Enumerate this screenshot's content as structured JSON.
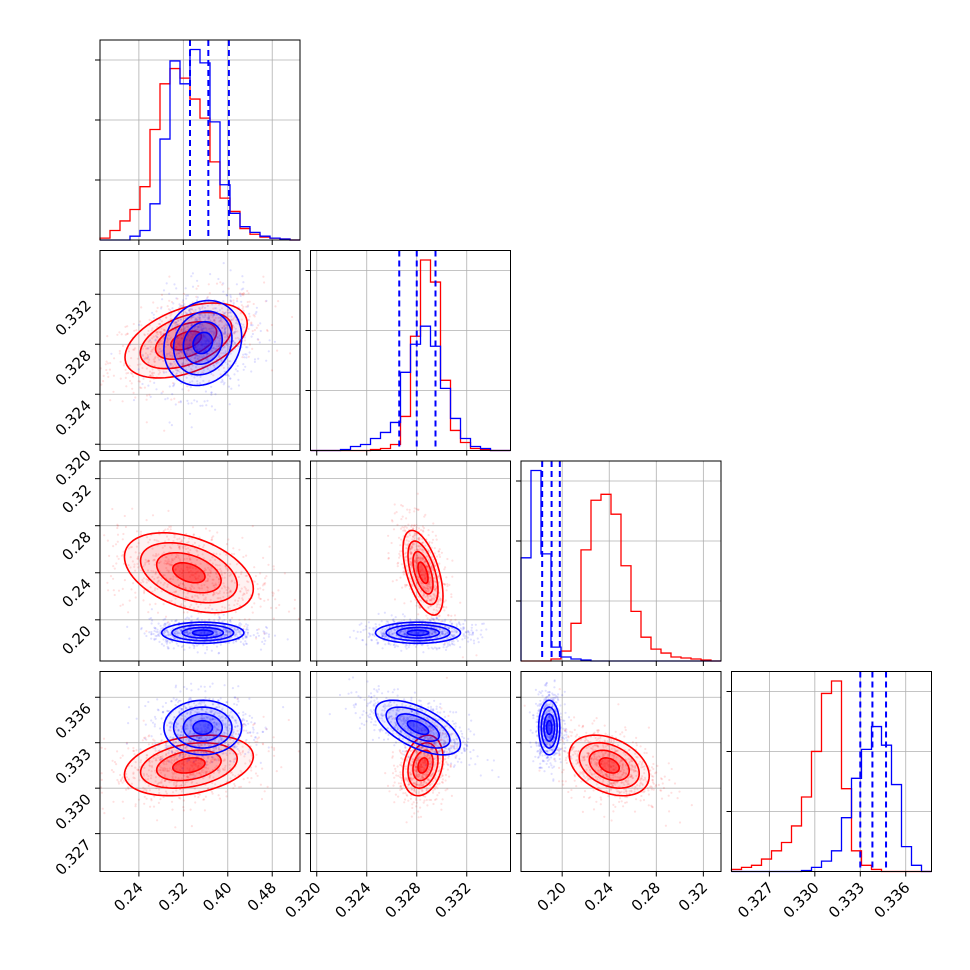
{
  "colors": {
    "red": "#ff0000",
    "blue": "#0000ff",
    "grid": "#b0b0b0"
  },
  "chart_data": {
    "type": "corner",
    "grid": true,
    "series": [
      {
        "color": "red"
      },
      {
        "color": "blue"
      }
    ],
    "parameters": [
      {
        "range": [
          0.17,
          0.53
        ],
        "ticks": [
          0.24,
          0.32,
          0.4,
          0.48
        ],
        "tick_labels": [
          "0.24",
          "0.32",
          "0.40",
          "0.48"
        ]
      },
      {
        "range": [
          0.3195,
          0.3355
        ],
        "ticks": [
          0.32,
          0.324,
          0.328,
          0.332
        ],
        "tick_labels": [
          "0.320",
          "0.324",
          "0.328",
          "0.332"
        ]
      },
      {
        "range": [
          0.165,
          0.335
        ],
        "ticks": [
          0.2,
          0.24,
          0.28,
          0.32
        ],
        "tick_labels": [
          "0.20",
          "0.24",
          "0.28",
          "0.32"
        ]
      },
      {
        "range": [
          0.3245,
          0.3377
        ],
        "ticks": [
          0.327,
          0.33,
          0.333,
          0.336
        ],
        "tick_labels": [
          "0.327",
          "0.330",
          "0.333",
          "0.336"
        ]
      }
    ],
    "histograms": [
      {
        "bin_edges": [
          0.17,
          0.188,
          0.206,
          0.224,
          0.242,
          0.26,
          0.278,
          0.296,
          0.314,
          0.332,
          0.35,
          0.368,
          0.386,
          0.404,
          0.422,
          0.44,
          0.458,
          0.476,
          0.494,
          0.512,
          0.53
        ],
        "red": [
          0.01,
          0.05,
          0.1,
          0.16,
          0.28,
          0.58,
          0.82,
          0.9,
          0.85,
          0.74,
          0.64,
          0.41,
          0.22,
          0.15,
          0.06,
          0.03,
          0.015,
          0.01,
          0.005,
          0
        ],
        "blue": [
          0,
          0,
          0,
          0.02,
          0.05,
          0.19,
          0.53,
          0.94,
          0.82,
          1.0,
          0.93,
          0.62,
          0.29,
          0.14,
          0.07,
          0.04,
          0.02,
          0.01,
          0.005,
          0
        ],
        "quantiles_blue": [
          0.332,
          0.365,
          0.402
        ]
      },
      {
        "bin_edges": [
          0.3195,
          0.3203,
          0.3211,
          0.3219,
          0.3227,
          0.3235,
          0.3243,
          0.3251,
          0.3259,
          0.3267,
          0.3275,
          0.3283,
          0.3291,
          0.3299,
          0.3307,
          0.3315,
          0.3323,
          0.3331,
          0.3339,
          0.3347,
          0.3355
        ],
        "red": [
          0,
          0,
          0,
          0,
          0,
          0,
          0.005,
          0.01,
          0.03,
          0.17,
          0.57,
          0.95,
          0.84,
          0.35,
          0.1,
          0.04,
          0.01,
          0.005,
          0,
          0
        ],
        "blue": [
          0,
          0,
          0,
          0.005,
          0.02,
          0.03,
          0.06,
          0.09,
          0.14,
          0.39,
          0.53,
          0.62,
          0.52,
          0.31,
          0.16,
          0.06,
          0.02,
          0.01,
          0,
          0
        ],
        "quantiles_blue": [
          0.3266,
          0.328,
          0.3295
        ]
      },
      {
        "bin_edges": [
          0.165,
          0.1735,
          0.182,
          0.1905,
          0.199,
          0.2075,
          0.216,
          0.2245,
          0.233,
          0.2415,
          0.25,
          0.2585,
          0.267,
          0.2755,
          0.284,
          0.2925,
          0.301,
          0.3095,
          0.318,
          0.3265,
          0.335
        ],
        "red": [
          0,
          0,
          0,
          0.01,
          0.05,
          0.19,
          0.56,
          0.81,
          0.84,
          0.74,
          0.48,
          0.25,
          0.12,
          0.06,
          0.04,
          0.02,
          0.015,
          0.01,
          0.005,
          0
        ],
        "blue": [
          0.52,
          0.96,
          0.54,
          0.07,
          0.02,
          0.01,
          0.005,
          0,
          0,
          0,
          0,
          0,
          0,
          0,
          0,
          0,
          0,
          0,
          0,
          0
        ],
        "quantiles_blue": [
          0.183,
          0.191,
          0.198
        ]
      },
      {
        "bin_edges": [
          0.3245,
          0.32516,
          0.32582,
          0.32648,
          0.32714,
          0.3278,
          0.32846,
          0.32912,
          0.32978,
          0.33044,
          0.3311,
          0.33176,
          0.33242,
          0.33308,
          0.33374,
          0.3344,
          0.33506,
          0.33572,
          0.33638,
          0.33704,
          0.3377
        ],
        "red": [
          0.01,
          0.02,
          0.03,
          0.06,
          0.1,
          0.14,
          0.22,
          0.36,
          0.58,
          0.86,
          0.92,
          0.4,
          0.1,
          0.03,
          0.01,
          0,
          0,
          0,
          0,
          0
        ],
        "blue": [
          0,
          0,
          0,
          0,
          0,
          0,
          0,
          0.005,
          0.02,
          0.05,
          0.1,
          0.26,
          0.45,
          0.59,
          0.7,
          0.61,
          0.42,
          0.12,
          0.03,
          0
        ],
        "quantiles_blue": [
          0.333,
          0.3338,
          0.3347
        ]
      }
    ],
    "pairs": [
      {
        "x": 0,
        "y": 1,
        "red": {
          "mean": [
            0.325,
            0.3283
          ],
          "sd": [
            0.055,
            0.0015
          ],
          "rho": 0.45
        },
        "blue": {
          "mean": [
            0.355,
            0.3281
          ],
          "sd": [
            0.035,
            0.0017
          ],
          "rho": 0.15
        }
      },
      {
        "x": 0,
        "y": 2,
        "red": {
          "mean": [
            0.33,
            0.24
          ],
          "sd": [
            0.058,
            0.017
          ],
          "rho": -0.4
        },
        "blue": {
          "mean": [
            0.355,
            0.189
          ],
          "sd": [
            0.037,
            0.0045
          ],
          "rho": 0.0
        }
      },
      {
        "x": 1,
        "y": 2,
        "red": {
          "mean": [
            0.3285,
            0.24
          ],
          "sd": [
            0.0008,
            0.018
          ],
          "rho": -0.55
        },
        "blue": {
          "mean": [
            0.3281,
            0.189
          ],
          "sd": [
            0.0017,
            0.0045
          ],
          "rho": 0.0
        }
      },
      {
        "x": 0,
        "y": 3,
        "red": {
          "mean": [
            0.33,
            0.3315
          ],
          "sd": [
            0.058,
            0.001
          ],
          "rho": 0.3
        },
        "blue": {
          "mean": [
            0.355,
            0.334
          ],
          "sd": [
            0.035,
            0.0009
          ],
          "rho": 0.0
        }
      },
      {
        "x": 1,
        "y": 3,
        "red": {
          "mean": [
            0.3285,
            0.3315
          ],
          "sd": [
            0.0008,
            0.001
          ],
          "rho": 0.25
        },
        "blue": {
          "mean": [
            0.3281,
            0.334
          ],
          "sd": [
            0.0017,
            0.0009
          ],
          "rho": -0.6
        }
      },
      {
        "x": 2,
        "y": 3,
        "red": {
          "mean": [
            0.24,
            0.3315
          ],
          "sd": [
            0.017,
            0.001
          ],
          "rho": -0.35
        },
        "blue": {
          "mean": [
            0.189,
            0.334
          ],
          "sd": [
            0.0045,
            0.0009
          ],
          "rho": 0.0
        }
      }
    ]
  }
}
